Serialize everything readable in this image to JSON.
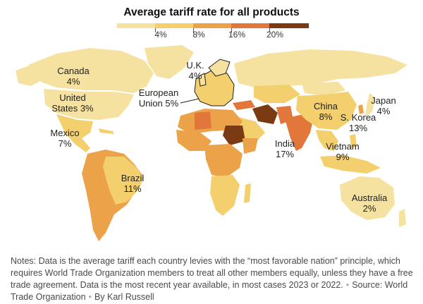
{
  "title": "Average tariff rate for all products",
  "legend": {
    "colors": [
      "#f5e2a0",
      "#f3cf6e",
      "#eca248",
      "#e2773b",
      "#7a3a12"
    ],
    "ticks": [
      "4%",
      "8%",
      "16%",
      "20%"
    ]
  },
  "labels": {
    "canada": [
      "Canada",
      "4%"
    ],
    "us": [
      "United",
      "States 3%"
    ],
    "mexico": [
      "Mexico",
      "7%"
    ],
    "brazil": [
      "Brazil",
      "11%"
    ],
    "uk": [
      "U.K.",
      "4%"
    ],
    "eu": [
      "European",
      "Union 5%"
    ],
    "china": [
      "China",
      "8%"
    ],
    "japan": [
      "Japan",
      "4%"
    ],
    "skorea": [
      "S. Korea",
      "13%"
    ],
    "india": [
      "India",
      "17%"
    ],
    "vietnam": [
      "Vietnam",
      "9%"
    ],
    "australia": [
      "Australia",
      "2%"
    ]
  },
  "notes": {
    "text": "Notes: Data is the average tariff each country levies with the “most favorable nation” principle, which requires World Trade Organization members to treat all other members equally, unless they have a free trade agreement. Data is the most recent year available, in most cases 2023 or 2022.",
    "source": "Source: World Trade Organization",
    "byline": "By Karl Russell"
  }
}
